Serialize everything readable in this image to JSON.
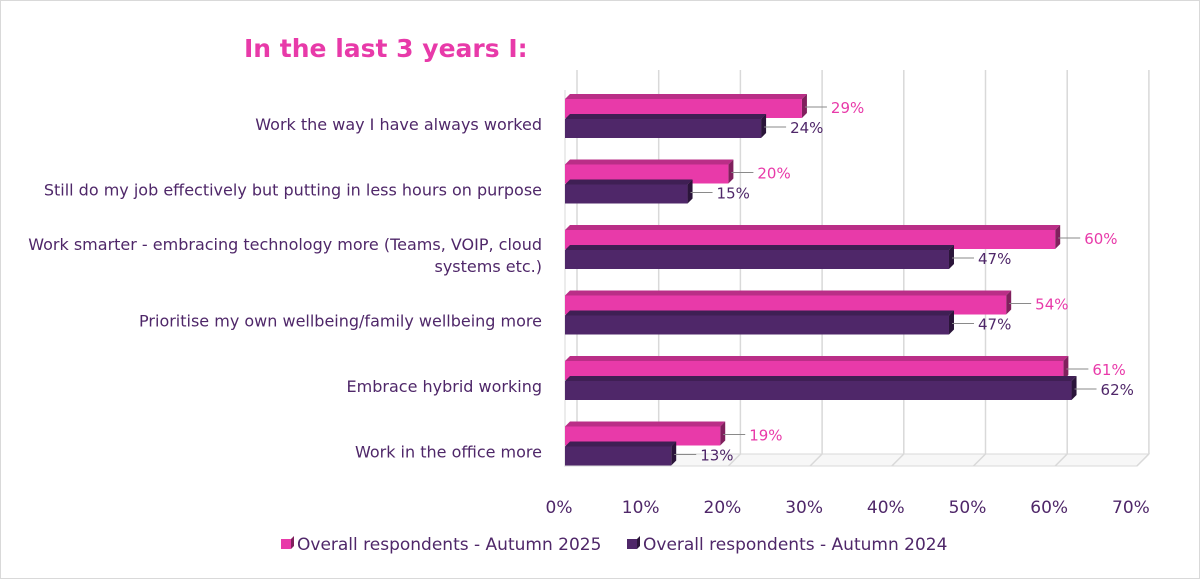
{
  "chart_data": {
    "type": "bar",
    "orientation": "horizontal",
    "title": "In the last 3 years I:",
    "categories": [
      "Work the way I have always worked",
      "Still do my job effectively but putting in less hours on purpose",
      "Work smarter - embracing technology more (Teams, VOIP, cloud systems etc.)",
      "Prioritise my own wellbeing/family wellbeing more",
      "Embrace hybrid working",
      "Work in the office more"
    ],
    "category_lines": [
      [
        "Work the way I have always worked"
      ],
      [
        "Still do my job effectively but putting in less hours on purpose"
      ],
      [
        "Work smarter - embracing technology more (Teams, VOIP, cloud",
        "systems etc.)"
      ],
      [
        "Prioritise my own wellbeing/family wellbeing more"
      ],
      [
        "Embrace hybrid working"
      ],
      [
        "Work in the office more"
      ]
    ],
    "series": [
      {
        "name": "Overall respondents - Autumn 2025",
        "values": [
          29,
          20,
          60,
          54,
          61,
          19
        ],
        "labels": [
          "29%",
          "20%",
          "60%",
          "54%",
          "61%",
          "19%"
        ],
        "color": "#e83aa9"
      },
      {
        "name": "Overall respondents - Autumn 2024",
        "values": [
          24,
          15,
          47,
          47,
          62,
          13
        ],
        "labels": [
          "24%",
          "15%",
          "47%",
          "47%",
          "62%",
          "13%"
        ],
        "color": "#4f2769"
      }
    ],
    "xlim": [
      0,
      70
    ],
    "xticks": [
      0,
      10,
      20,
      30,
      40,
      50,
      60,
      70
    ],
    "xtick_labels": [
      "0%",
      "10%",
      "20%",
      "30%",
      "40%",
      "50%",
      "60%",
      "70%"
    ],
    "grid": true,
    "legend": "bottom",
    "colors": {
      "title": "#e83aa9",
      "axis_text": "#4f2769",
      "grid": "#d9d9d9"
    }
  }
}
